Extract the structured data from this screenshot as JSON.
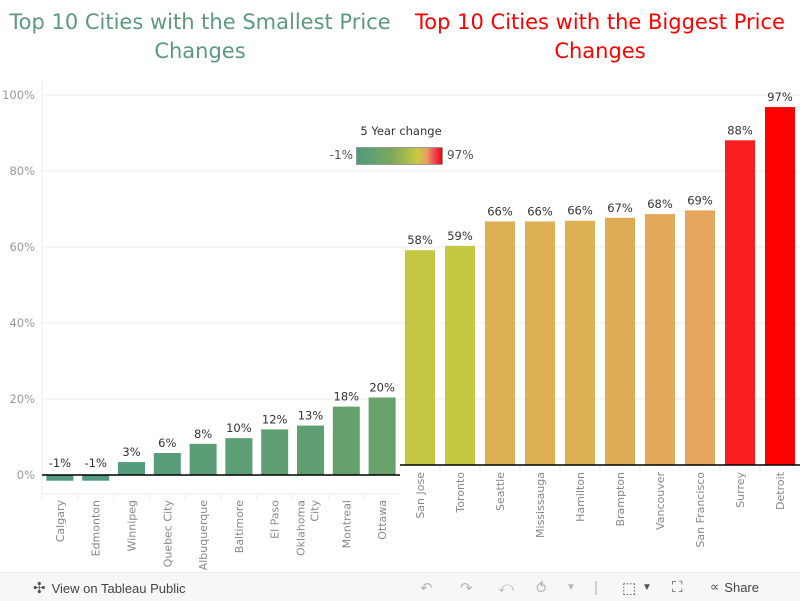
{
  "chart_data": [
    {
      "type": "bar",
      "title": "Top 10 Cities with the Smallest Price Changes",
      "title_color": "#5b9a7a",
      "categories": [
        "Calgary",
        "Edmonton",
        "Winnipeg",
        "Quebec City",
        "Albuquerque",
        "Baltimore",
        "El Paso",
        "Oklahoma City",
        "Montreal",
        "Ottawa"
      ],
      "values": [
        -1.5,
        -1.5,
        3.4,
        5.8,
        8.2,
        9.7,
        12,
        13,
        18,
        20.4
      ],
      "labels": [
        "-1%",
        "-1%",
        "3%",
        "6%",
        "8%",
        "10%",
        "12%",
        "13%",
        "18%",
        "20%"
      ],
      "xlabel": "",
      "ylabel": "",
      "ylim": [
        -5,
        100
      ],
      "yticks": [
        "0%",
        "20%",
        "40%",
        "60%",
        "80%",
        "100%"
      ],
      "ytick_values": [
        0,
        20,
        40,
        60,
        80,
        100
      ],
      "grid": true
    },
    {
      "type": "bar",
      "title": "Top 10 Cities with the Biggest Price Changes",
      "title_color": "#ff0000",
      "categories": [
        "San Jose",
        "Toronto",
        "Seattle",
        "Mississauga",
        "Hamilton",
        "Brampton",
        "Vancouver",
        "San Francisco",
        "Surrey",
        "Detroit"
      ],
      "values": [
        58.2,
        59.4,
        66,
        66,
        66.2,
        67,
        68,
        69,
        88,
        97
      ],
      "labels": [
        "58%",
        "59%",
        "66%",
        "66%",
        "66%",
        "67%",
        "68%",
        "69%",
        "88%",
        "97%"
      ],
      "xlabel": "",
      "ylabel": "",
      "ylim": [
        0,
        100
      ],
      "grid": true
    }
  ],
  "legend": {
    "title": "5 Year change",
    "min": "-1%",
    "max": "97%"
  },
  "footer": {
    "tableau_label": "View on Tableau Public",
    "share_label": "Share",
    "icons": [
      "undo-icon",
      "redo-icon",
      "revert-icon",
      "refresh-icon",
      "download-icon",
      "fullscreen-icon",
      "share-icon"
    ]
  }
}
